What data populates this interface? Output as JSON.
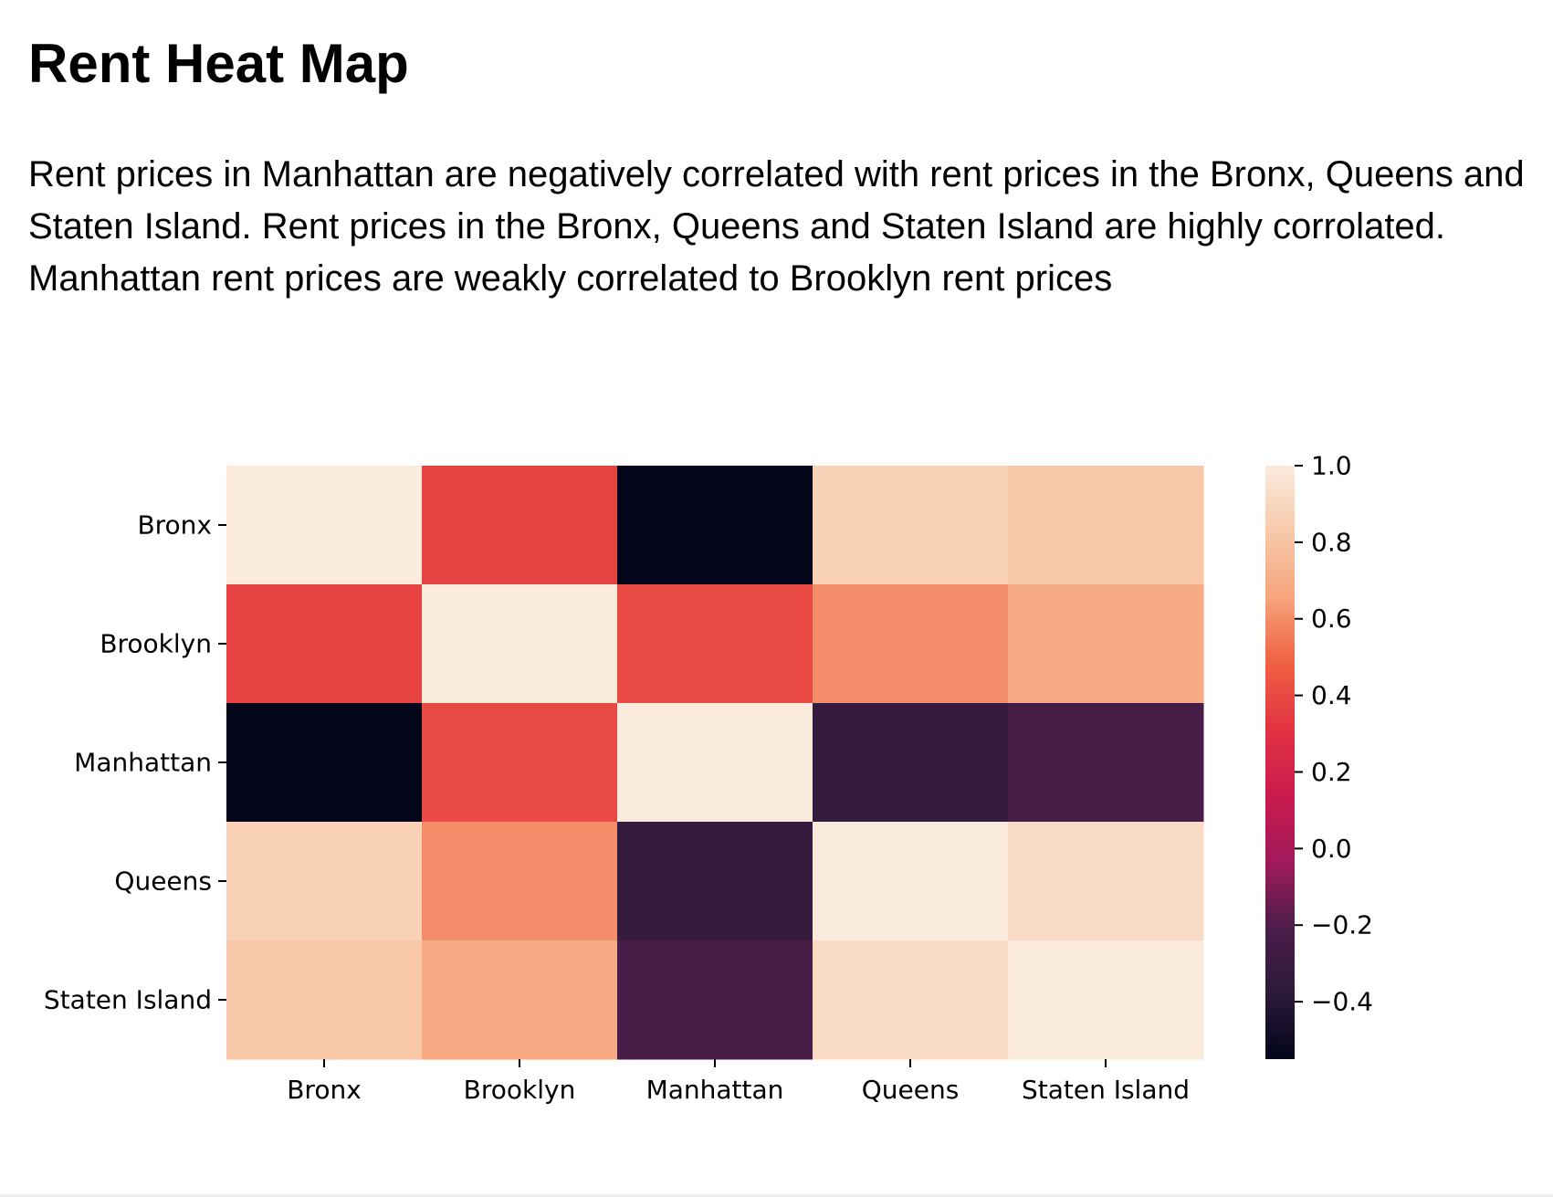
{
  "page": {
    "title": "Rent Heat Map",
    "description": "Rent prices in Manhattan are negatively correlated with rent prices in the Bronx, Queens and Staten Island. Rent prices in the Bronx, Queens and Staten Island are highly corrolated. Manhattan rent prices are weakly correlated to Brooklyn rent prices"
  },
  "chart_data": {
    "type": "heatmap",
    "title": "",
    "xlabel": "",
    "ylabel": "",
    "x_categories": [
      "Bronx",
      "Brooklyn",
      "Manhattan",
      "Queens",
      "Staten Island"
    ],
    "y_categories": [
      "Bronx",
      "Brooklyn",
      "Manhattan",
      "Queens",
      "Staten Island"
    ],
    "values": [
      [
        1.0,
        0.37,
        -0.55,
        0.87,
        0.82
      ],
      [
        0.37,
        1.0,
        0.4,
        0.6,
        0.69
      ],
      [
        -0.55,
        0.4,
        1.0,
        -0.33,
        -0.23
      ],
      [
        0.87,
        0.6,
        -0.33,
        1.0,
        0.92
      ],
      [
        0.82,
        0.69,
        -0.23,
        0.92,
        1.0
      ]
    ],
    "colorbar": {
      "range": [
        -0.55,
        1.0
      ],
      "ticks": [
        1.0,
        0.8,
        0.6,
        0.4,
        0.2,
        0.0,
        -0.2,
        -0.4
      ],
      "tick_labels": [
        "1.0",
        "0.8",
        "0.6",
        "0.4",
        "0.2",
        "0.0",
        "−0.2",
        "−0.4"
      ]
    },
    "colormap": "rocket",
    "colormap_stops": [
      "#03051a",
      "#2c1a39",
      "#4c1d4b",
      "#a11a5b",
      "#cb1b4f",
      "#e13342",
      "#f06043",
      "#f6a47c",
      "#f7c9aa",
      "#faebdd"
    ],
    "grid": false,
    "legend": "colorbar-right"
  }
}
